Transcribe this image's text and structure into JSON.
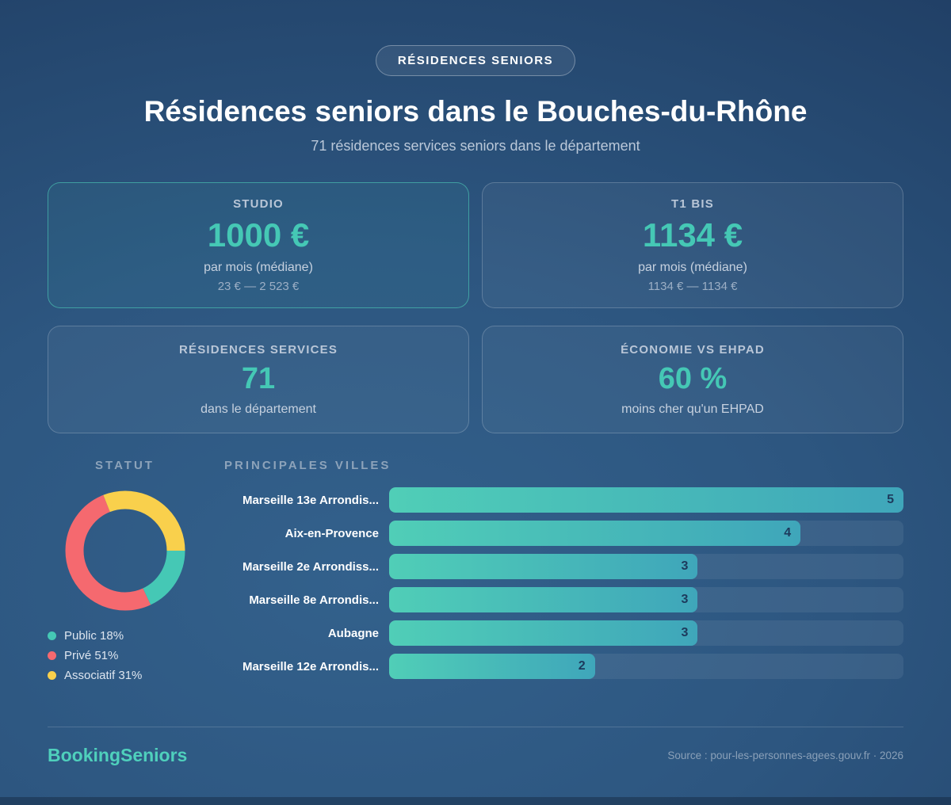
{
  "header": {
    "badge": "RÉSIDENCES SENIORS",
    "title": "Résidences seniors dans le Bouches-du-Rhône",
    "subtitle": "71 résidences services seniors dans le département"
  },
  "stat_cards": [
    {
      "label": "STUDIO",
      "value": "1000 €",
      "sub": "par mois (médiane)",
      "range": "23 € — 2 523 €",
      "highlighted": true
    },
    {
      "label": "T1 BIS",
      "value": "1134 €",
      "sub": "par mois (médiane)",
      "range": "1134 € — 1134 €",
      "highlighted": false
    },
    {
      "label": "RÉSIDENCES SERVICES",
      "value": "71",
      "sub": "dans le département",
      "highlighted": false
    },
    {
      "label": "ÉCONOMIE VS EHPAD",
      "value": "60 %",
      "sub": "moins cher qu'un EHPAD",
      "highlighted": false
    }
  ],
  "chart_data": [
    {
      "type": "pie",
      "donut": true,
      "title": "STATUT",
      "labels": [
        "Public",
        "Privé",
        "Associatif"
      ],
      "values": [
        18,
        51,
        31
      ],
      "colors": [
        "#45c8b5",
        "#f5696f",
        "#f9d04c"
      ],
      "legend_labels": [
        "Public 18%",
        "Privé 51%",
        "Associatif 31%"
      ],
      "legend_position": "bottom-left",
      "start_angle": "3-oclock",
      "direction": "clockwise"
    },
    {
      "type": "bar",
      "orientation": "horizontal",
      "title": "PRINCIPALES VILLES",
      "categories": [
        "Marseille 13e Arrondis...",
        "Aix-en-Provence",
        "Marseille 2e Arrondiss...",
        "Marseille 8e Arrondis...",
        "Aubagne",
        "Marseille 12e Arrondis..."
      ],
      "values": [
        5,
        4,
        3,
        3,
        3,
        2
      ],
      "xlim": [
        0,
        5
      ],
      "value_label_position": "inside-right",
      "bar_gradient": [
        "#50ceb7",
        "#3fa6ba"
      ]
    }
  ],
  "footer": {
    "logo": "BookingSeniors",
    "source": "Source : pour-les-personnes-agees.gouv.fr · 2026"
  },
  "colors": {
    "accent_teal": "#45c8b5",
    "coral": "#f5696f",
    "yellow": "#f9d04c",
    "background_dark": "#1f3c62",
    "background_light": "#33618c",
    "bar_value_text": "#1d3a5c",
    "highlight_card_border": "#4dcdb8"
  }
}
